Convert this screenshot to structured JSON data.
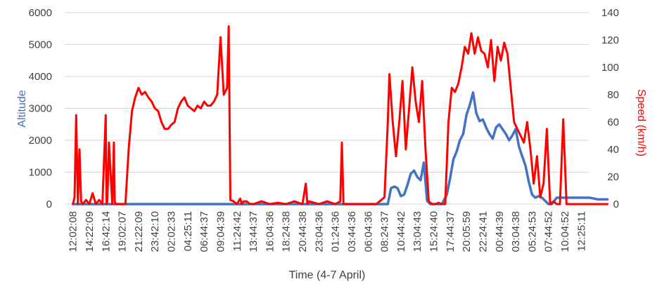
{
  "chart_data": {
    "type": "line",
    "xlabel": "Time (4-7 April)",
    "ylabel_left": "Altitude",
    "ylabel_right": "Speed (km/h)",
    "ylim_left": [
      0,
      6000
    ],
    "ylim_right": [
      0,
      140
    ],
    "yticks_left": [
      "0",
      "1000",
      "2000",
      "3000",
      "4000",
      "5000",
      "6000"
    ],
    "yticks_right": [
      "0",
      "20",
      "40",
      "60",
      "80",
      "100",
      "120",
      "140"
    ],
    "xtick_labels": [
      "12:02:08",
      "14:22:09",
      "16:42:14",
      "19:02:07",
      "21:22:09",
      "23:42:10",
      "02:02:33",
      "04:25:11",
      "06:44:37",
      "09:04:39",
      "11:24:42",
      "13:44:37",
      "16:04:36",
      "18:24:38",
      "20:44:38",
      "23:04:36",
      "01:24:36",
      "03:44:36",
      "06:04:36",
      "08:24:37",
      "10:44:42",
      "13:04:43",
      "15:24:40",
      "17:44:37",
      "20:05:59",
      "22:24:41",
      "00:44:39",
      "03:04:38",
      "05:24:53",
      "07:44:52",
      "10:04:52",
      "12:25:11"
    ],
    "grid": true,
    "colors": {
      "altitude": "#4472C4",
      "speed": "#FF0000",
      "grid": "#D9D9D9",
      "text": "#404040"
    },
    "series": [
      {
        "name": "Altitude",
        "axis": "left",
        "x": [
          0,
          3.2,
          3.5,
          3.7,
          3.9,
          4.1,
          4.3,
          4.5,
          4.7,
          4.9,
          5.1,
          5.3,
          5.5,
          5.7,
          5.9,
          6.1,
          6.3,
          6.5,
          6.7,
          6.9,
          7.1,
          7.3,
          7.5,
          7.7,
          7.9,
          8.1,
          8.3,
          8.5,
          8.7,
          8.8,
          8.9,
          9.0,
          9.2,
          9.4,
          9.6,
          9.8,
          10.0,
          10.1,
          10.3,
          10.5,
          19.2,
          19.4,
          19.6,
          19.8,
          20.0,
          20.2,
          20.4,
          20.6,
          20.8,
          21.0,
          21.2,
          21.4,
          21.6,
          21.8,
          22.0,
          22.2,
          22.5,
          22.8,
          23.0,
          23.2,
          23.4,
          23.6,
          23.8,
          24.0,
          24.2,
          24.4,
          24.6,
          24.8,
          25.0,
          25.2,
          25.4,
          25.6,
          25.8,
          26.0,
          26.2,
          26.4,
          26.6,
          26.8,
          27.0,
          27.2,
          27.4,
          27.6,
          27.8,
          28.0,
          28.2,
          28.4,
          28.6,
          28.8,
          29.0,
          29.2,
          29.5,
          30.0,
          30.5,
          31.0,
          31.5,
          32.0,
          32.6
        ],
        "values": [
          0,
          0,
          0,
          0,
          0,
          0,
          0,
          0,
          0,
          0,
          0,
          0,
          0,
          0,
          0,
          0,
          0,
          0,
          0,
          0,
          0,
          0,
          0,
          0,
          0,
          0,
          0,
          0,
          0,
          0,
          0,
          0,
          0,
          0,
          0,
          0,
          0,
          0,
          0,
          0,
          0,
          500,
          550,
          500,
          250,
          300,
          600,
          950,
          1050,
          850,
          750,
          1300,
          100,
          0,
          0,
          0,
          0,
          300,
          800,
          1400,
          1650,
          2000,
          2200,
          2800,
          3100,
          3500,
          2850,
          2600,
          2650,
          2400,
          2200,
          2050,
          2400,
          2500,
          2350,
          2200,
          2000,
          2150,
          2350,
          1800,
          1500,
          1200,
          700,
          300,
          200,
          250,
          200,
          100,
          0,
          0,
          200,
          200,
          200,
          200,
          200,
          150,
          150
        ]
      },
      {
        "name": "Speed (km/h)",
        "axis": "right",
        "x": [
          0,
          0.1,
          0.2,
          0.3,
          0.4,
          0.5,
          0.6,
          0.8,
          1.0,
          1.2,
          1.4,
          1.6,
          1.8,
          2.0,
          2.05,
          2.1,
          2.2,
          2.4,
          2.5,
          2.55,
          2.6,
          2.7,
          2.8,
          2.9,
          3.0,
          3.2,
          3.4,
          3.6,
          3.8,
          4.0,
          4.2,
          4.4,
          4.6,
          4.8,
          5.0,
          5.2,
          5.4,
          5.6,
          5.8,
          6.0,
          6.2,
          6.4,
          6.6,
          6.8,
          7.0,
          7.2,
          7.4,
          7.6,
          7.8,
          8.0,
          8.2,
          8.4,
          8.6,
          8.8,
          9.0,
          9.2,
          9.4,
          9.5,
          9.6,
          9.8,
          10.0,
          10.2,
          10.3,
          10.4,
          10.6,
          10.8,
          11.0,
          11.5,
          12.0,
          12.5,
          13.0,
          13.5,
          14.0,
          14.2,
          14.3,
          14.4,
          15.0,
          15.5,
          16.0,
          16.3,
          16.4,
          16.5,
          17.0,
          17.5,
          18.0,
          18.5,
          19.0,
          19.2,
          19.3,
          19.5,
          19.7,
          19.9,
          20.1,
          20.3,
          20.5,
          20.7,
          20.9,
          21.1,
          21.3,
          21.5,
          21.7,
          21.9,
          22.1,
          22.3,
          22.5,
          22.7,
          22.9,
          23.1,
          23.3,
          23.5,
          23.7,
          23.9,
          24.1,
          24.3,
          24.5,
          24.7,
          24.9,
          25.1,
          25.3,
          25.5,
          25.7,
          25.9,
          26.1,
          26.3,
          26.5,
          26.7,
          26.9,
          27.1,
          27.3,
          27.5,
          27.7,
          27.9,
          28.1,
          28.3,
          28.5,
          28.7,
          28.9,
          29.1,
          29.3,
          29.5,
          29.7,
          29.9,
          30.1,
          30.3,
          30.5,
          30.7,
          31.0,
          31.5,
          32.0,
          32.6
        ],
        "values": [
          0,
          5,
          65,
          0,
          40,
          2,
          0,
          3,
          0,
          8,
          0,
          3,
          0,
          65,
          0,
          2,
          45,
          0,
          45,
          2,
          0,
          0,
          0,
          0,
          0,
          0,
          40,
          68,
          78,
          85,
          80,
          82,
          78,
          75,
          70,
          68,
          60,
          55,
          55,
          58,
          60,
          70,
          75,
          78,
          72,
          70,
          68,
          72,
          70,
          75,
          72,
          72,
          75,
          80,
          122,
          80,
          85,
          130,
          3,
          2,
          0,
          4,
          0,
          2,
          2,
          0,
          0,
          2,
          0,
          1,
          0,
          2,
          0,
          15,
          0,
          2,
          0,
          2,
          0,
          2,
          45,
          0,
          0,
          0,
          0,
          0,
          5,
          60,
          95,
          60,
          35,
          60,
          90,
          40,
          70,
          100,
          75,
          60,
          90,
          40,
          2,
          0,
          0,
          1,
          0,
          0,
          60,
          85,
          82,
          88,
          100,
          115,
          110,
          125,
          110,
          122,
          112,
          110,
          100,
          120,
          90,
          115,
          105,
          118,
          110,
          85,
          60,
          55,
          50,
          45,
          60,
          40,
          15,
          35,
          5,
          15,
          55,
          0,
          2,
          0,
          0,
          62,
          0,
          0,
          0,
          0,
          0,
          0,
          0,
          0
        ]
      }
    ]
  }
}
